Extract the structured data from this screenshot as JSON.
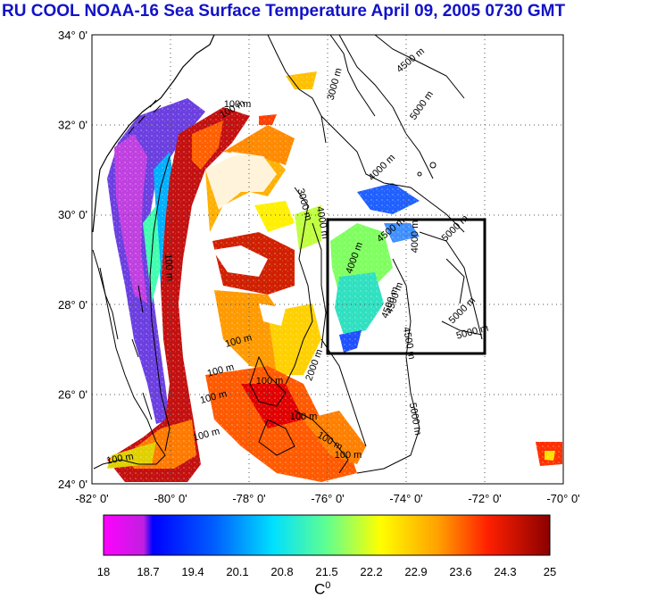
{
  "title": "RU COOL  NOAA-16 Sea Surface Temperature April 09, 2005 0730 GMT",
  "map": {
    "lat_ticks": [
      "34° 0'",
      "32° 0'",
      "30° 0'",
      "28° 0'",
      "26° 0'",
      "24° 0'"
    ],
    "lon_ticks": [
      "-82° 0'",
      "-80° 0'",
      "-78° 0'",
      "-76° 0'",
      "-74° 0'",
      "-72° 0'",
      "-70° 0'"
    ],
    "lat_range": [
      24,
      34
    ],
    "lon_range": [
      -82,
      -70
    ],
    "study_box": {
      "lon": [
        -76,
        -72
      ],
      "lat": [
        27,
        30
      ]
    },
    "contour_labels": [
      "3000 m",
      "4500 m",
      "5000 m",
      "100 m",
      "100 m",
      "3000 m",
      "4000 m",
      "4500 m",
      "4000 m",
      "5000 m",
      "4500 m",
      "4000 m",
      "4000 m",
      "4500 m",
      "5000 m",
      "4500 m",
      "5000 m",
      "100 m",
      "100 m",
      "100 m",
      "100 m",
      "100 m",
      "100 m",
      "2000 m",
      "100 m",
      "100 m",
      "100 m",
      "5000 m",
      "100 m"
    ]
  },
  "colorbar": {
    "tick_labels": [
      "18",
      "18.7",
      "19.4",
      "20.1",
      "20.8",
      "21.5",
      "22.2",
      "22.9",
      "23.6",
      "24.3",
      "25"
    ],
    "range": [
      18,
      25
    ],
    "unit_base": "C",
    "unit_sup": "0",
    "colors": [
      "#ff00ff",
      "#c020e0",
      "#0000ff",
      "#0060ff",
      "#00c0ff",
      "#00ffe0",
      "#80ff80",
      "#ffff00",
      "#ffa000",
      "#ff4000",
      "#ff0000",
      "#a00000"
    ]
  }
}
